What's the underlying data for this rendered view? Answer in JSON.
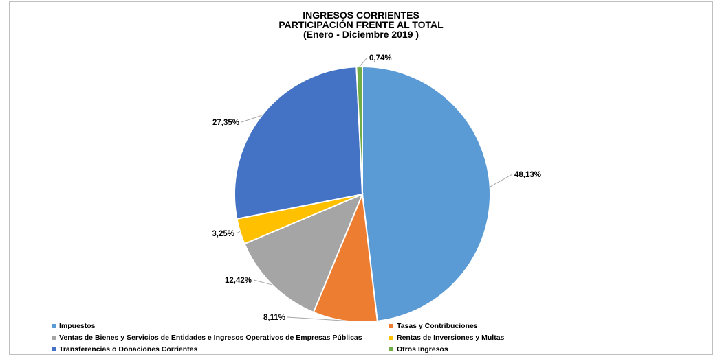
{
  "chart_data": {
    "type": "pie",
    "title": [
      "INGRESOS CORRIENTES",
      "PARTICIPACIÓN FRENTE AL TOTAL",
      "(Enero - Diciembre 2019 )"
    ],
    "slices": [
      {
        "name": "Impuestos",
        "value": 48.13,
        "label": "48,13%",
        "color": "#5b9bd5"
      },
      {
        "name": "Tasas y Contribuciones",
        "value": 8.11,
        "label": "8,11%",
        "color": "#ed7d31"
      },
      {
        "name": "Ventas de Bienes y Servicios de Entidades e Ingresos Operativos de Empresas Públicas",
        "value": 12.42,
        "label": "12,42%",
        "color": "#a5a5a5"
      },
      {
        "name": "Rentas de Inversiones y Multas",
        "value": 3.25,
        "label": "3,25%",
        "color": "#ffc000"
      },
      {
        "name": "Transferencias o Donaciones Corrientes",
        "value": 27.35,
        "label": "27,35%",
        "color": "#4472c4"
      },
      {
        "name": "Otros Ingresos",
        "value": 0.74,
        "label": "0,74%",
        "color": "#70ad47"
      }
    ],
    "legend_position": "bottom"
  }
}
